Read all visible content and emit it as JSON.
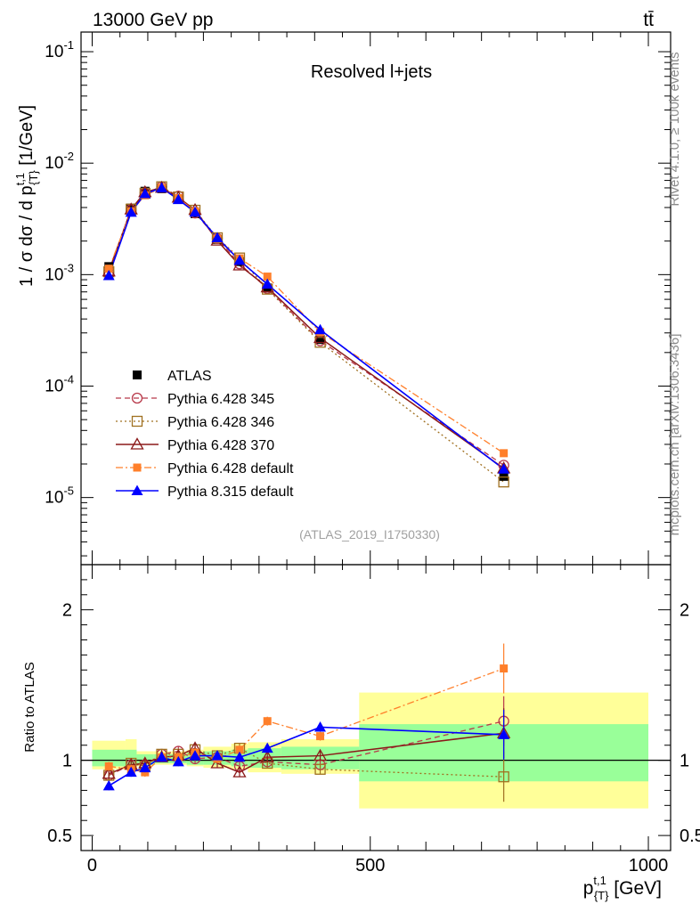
{
  "header": {
    "energy_label": "13000 GeV pp",
    "process_label": "tt̄",
    "rivet_label": "Rivet 4.1.0, ≥ 100k events",
    "mcplots_label": "mcplots.cern.ch [arXiv:1306.3436]",
    "analysis_id": "(ATLAS_2019_I1750330)",
    "panel_title": "Resolved l+jets"
  },
  "colors": {
    "data": "#000000",
    "p345": "#b8394a",
    "p346": "#a07020",
    "p370": "#8b1a1a",
    "pdefault": "#ff7f2a",
    "p8": "#0000ff",
    "band_outer": "#ffff99",
    "band_inner": "#99ff99"
  },
  "chart_data": [
    {
      "type": "line",
      "panel": "main",
      "ylabel": "1 / σ dσ / d p_{T}^{t,1} [1/GeV]",
      "yscale": "log",
      "xlim": [
        -20,
        1040
      ],
      "ylim": [
        2.5e-06,
        0.15
      ],
      "ytick_labels": [
        "10^-5",
        "10^-4",
        "10^-3",
        "10^-2",
        "10^-1"
      ],
      "ytick_values": [
        1e-05,
        0.0001,
        0.001,
        0.01,
        0.1
      ],
      "x": [
        30,
        70,
        95,
        125,
        155,
        185,
        225,
        265,
        315,
        410,
        740
      ],
      "x_bins": [
        [
          0,
          60
        ],
        [
          60,
          80
        ],
        [
          80,
          110
        ],
        [
          110,
          140
        ],
        [
          140,
          170
        ],
        [
          170,
          200
        ],
        [
          200,
          250
        ],
        [
          250,
          280
        ],
        [
          280,
          340
        ],
        [
          340,
          480
        ],
        [
          480,
          1000
        ]
      ],
      "legend": {
        "data": "ATLAS",
        "p345": "Pythia 6.428 345",
        "p346": "Pythia 6.428 346",
        "p370": "Pythia 6.428 370",
        "pdefault": "Pythia 6.428 default",
        "p8": "Pythia 8.315 default"
      },
      "series": [
        {
          "key": "data",
          "name": "ATLAS",
          "values": [
            0.00118,
            0.00395,
            0.0056,
            0.0059,
            0.00478,
            0.00352,
            0.00207,
            0.00131,
            0.00076,
            0.000262,
            1.55e-05
          ]
        },
        {
          "key": "p345",
          "name": "Pythia 6.428 345",
          "values": [
            0.00106,
            0.00383,
            0.00541,
            0.00613,
            0.00506,
            0.00357,
            0.00211,
            0.00125,
            0.00075,
            0.000255,
            1.95e-05
          ]
        },
        {
          "key": "p346",
          "name": "Pythia 6.428 346",
          "values": [
            0.00106,
            0.00387,
            0.00537,
            0.00614,
            0.00497,
            0.00378,
            0.00214,
            0.00141,
            0.00074,
            0.000247,
            1.38e-05
          ]
        },
        {
          "key": "p370",
          "name": "Pythia 6.428 370",
          "values": [
            0.00107,
            0.00385,
            0.0055,
            0.00603,
            0.00491,
            0.00381,
            0.00202,
            0.00121,
            0.00077,
            0.00027,
            1.83e-05
          ]
        },
        {
          "key": "pdefault",
          "name": "Pythia 6.428 default",
          "values": [
            0.00113,
            0.0037,
            0.00515,
            0.006,
            0.00485,
            0.0037,
            0.0021,
            0.0014,
            0.00096,
            0.000305,
            2.5e-05
          ]
        },
        {
          "key": "p8",
          "name": "Pythia 8.315 default",
          "values": [
            0.00098,
            0.00362,
            0.00532,
            0.006,
            0.00471,
            0.00363,
            0.00214,
            0.00134,
            0.00082,
            0.00032,
            1.8e-05
          ]
        }
      ]
    },
    {
      "type": "line",
      "panel": "ratio",
      "xlabel": "p_{T}^{t,1} [GeV]",
      "ylabel": "Ratio to ATLAS",
      "xlim": [
        -20,
        1040
      ],
      "ylim": [
        0.4,
        2.3
      ],
      "xtick_labels": [
        "0",
        "500",
        "1000"
      ],
      "xtick_values": [
        0,
        500,
        1000
      ],
      "ytick_labels": [
        "0.5",
        "1",
        "2"
      ],
      "ytick_values": [
        0.5,
        1,
        2
      ],
      "x": [
        30,
        70,
        95,
        125,
        155,
        185,
        225,
        265,
        315,
        410,
        740
      ],
      "uncertainty_band": {
        "bins": [
          [
            0,
            60
          ],
          [
            60,
            80
          ],
          [
            80,
            110
          ],
          [
            110,
            140
          ],
          [
            140,
            170
          ],
          [
            170,
            200
          ],
          [
            200,
            250
          ],
          [
            250,
            280
          ],
          [
            280,
            340
          ],
          [
            340,
            480
          ],
          [
            480,
            1000
          ]
        ],
        "outer": [
          [
            0.94,
            1.13
          ],
          [
            0.95,
            1.14
          ],
          [
            0.96,
            1.06
          ],
          [
            0.97,
            1.06
          ],
          [
            0.97,
            1.06
          ],
          [
            0.96,
            1.07
          ],
          [
            0.95,
            1.09
          ],
          [
            0.94,
            1.11
          ],
          [
            0.92,
            1.12
          ],
          [
            0.91,
            1.14
          ],
          [
            0.68,
            1.45
          ]
        ],
        "inner": [
          [
            0.96,
            1.07
          ],
          [
            0.97,
            1.07
          ],
          [
            0.97,
            1.04
          ],
          [
            0.98,
            1.04
          ],
          [
            0.98,
            1.04
          ],
          [
            0.97,
            1.05
          ],
          [
            0.97,
            1.06
          ],
          [
            0.96,
            1.07
          ],
          [
            0.95,
            1.08
          ],
          [
            0.94,
            1.09
          ],
          [
            0.86,
            1.24
          ]
        ]
      },
      "series": [
        {
          "key": "p345",
          "name": "Pythia 6.428 345",
          "values": [
            0.9,
            0.97,
            0.97,
            1.04,
            1.06,
            1.01,
            1.02,
            0.96,
            0.99,
            0.97,
            1.26
          ]
        },
        {
          "key": "p346",
          "name": "Pythia 6.428 346",
          "values": [
            0.9,
            0.98,
            0.96,
            1.04,
            1.04,
            1.07,
            1.03,
            1.08,
            0.98,
            0.94,
            0.89
          ]
        },
        {
          "key": "p370",
          "name": "Pythia 6.428 370",
          "values": [
            0.91,
            0.97,
            0.98,
            1.02,
            1.03,
            1.08,
            0.98,
            0.92,
            1.02,
            1.03,
            1.18
          ]
        },
        {
          "key": "pdefault",
          "name": "Pythia 6.428 default",
          "values": [
            0.96,
            0.94,
            0.92,
            1.02,
            1.02,
            1.05,
            1.01,
            1.07,
            1.26,
            1.16,
            1.61
          ]
        },
        {
          "key": "p8",
          "name": "Pythia 8.315 default",
          "values": [
            0.83,
            0.92,
            0.95,
            1.02,
            0.99,
            1.03,
            1.03,
            1.02,
            1.08,
            1.22,
            1.17
          ]
        }
      ]
    }
  ]
}
